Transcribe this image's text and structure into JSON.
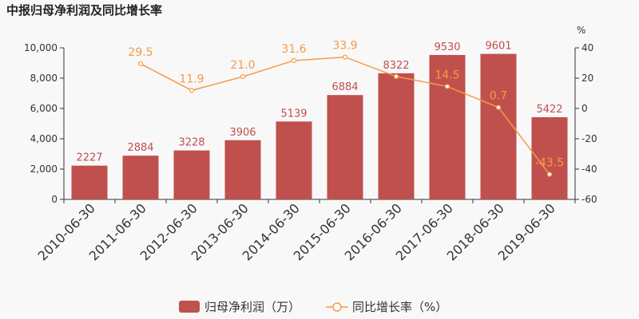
{
  "chart_data": {
    "type": "bar",
    "title": "中报归母净利润及同比增长率",
    "categories": [
      "2010-06-30",
      "2011-06-30",
      "2012-06-30",
      "2013-06-30",
      "2014-06-30",
      "2015-06-30",
      "2016-06-30",
      "2017-06-30",
      "2018-06-30",
      "2019-06-30"
    ],
    "series": [
      {
        "name": "归母净利润（万）",
        "type": "bar",
        "axis": "left",
        "values": [
          2227,
          2884,
          3228,
          3906,
          5139,
          6884,
          8322,
          9530,
          9601,
          5422
        ]
      },
      {
        "name": "同比增长率（%）",
        "type": "line",
        "axis": "right",
        "values": [
          null,
          29.5,
          11.9,
          21.0,
          31.6,
          33.9,
          21.1,
          14.5,
          0.7,
          -43.5
        ],
        "labels": [
          "",
          "29.5",
          "11.9",
          "21.0",
          "31.6",
          "33.9",
          "",
          "14.5",
          "0.7",
          "-43.5"
        ]
      }
    ],
    "y_left": {
      "ylim": [
        0,
        10000
      ],
      "ticks": [
        0,
        2000,
        4000,
        6000,
        8000,
        10000
      ],
      "tick_labels": [
        "0",
        "2,000",
        "4,000",
        "6,000",
        "8,000",
        "10,000"
      ]
    },
    "y_right": {
      "ylim": [
        -60,
        40
      ],
      "ticks": [
        -60,
        -40,
        -20,
        0,
        20,
        40
      ],
      "tick_labels": [
        "-60",
        "-40",
        "-20",
        "0",
        "20",
        "40"
      ],
      "unit": "%"
    },
    "grid": false,
    "legend_position": "bottom-center",
    "colors": {
      "bar": "#c0504d",
      "line": "#f79a46",
      "axis": "#333333"
    }
  }
}
